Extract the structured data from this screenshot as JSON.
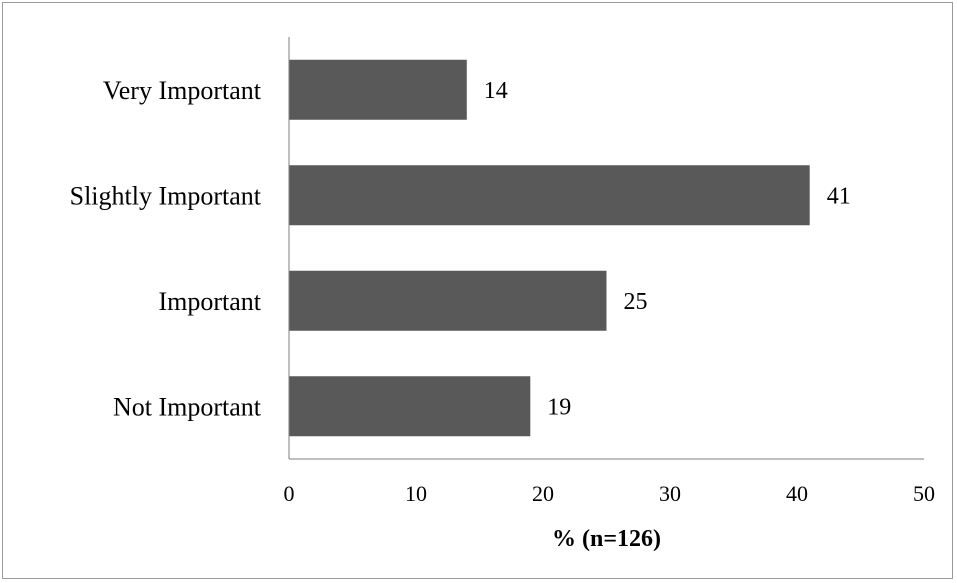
{
  "chart_data": {
    "type": "bar",
    "orientation": "horizontal",
    "categories": [
      "Very Important",
      "Slightly Important",
      "Important",
      "Not Important"
    ],
    "values": [
      14,
      41,
      25,
      19
    ],
    "data_labels": [
      "14",
      "41",
      "25",
      "19"
    ],
    "title": "",
    "xlabel": "% (n=126)",
    "ylabel": "",
    "xlim": [
      0,
      50
    ],
    "xticks": [
      0,
      10,
      20,
      30,
      40,
      50
    ],
    "xtick_labels": [
      "0",
      "10",
      "20",
      "30",
      "40",
      "50"
    ],
    "grid": false,
    "legend": "none",
    "bar_color": "#595959",
    "axis_color": "#7f7f7f",
    "frame_color": "#9a9a9a"
  }
}
